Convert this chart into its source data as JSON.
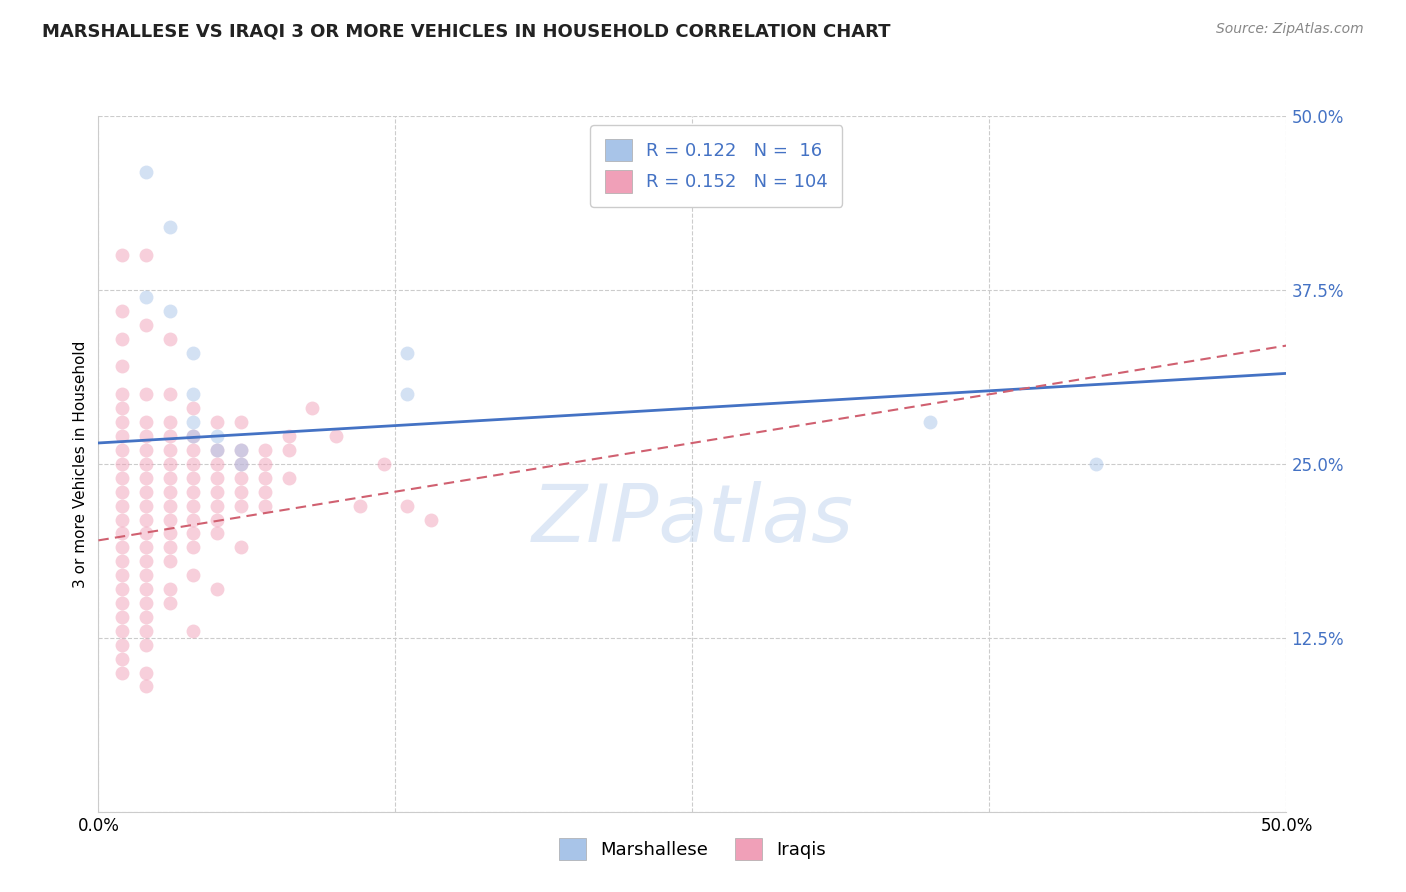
{
  "title": "MARSHALLESE VS IRAQI 3 OR MORE VEHICLES IN HOUSEHOLD CORRELATION CHART",
  "source": "Source: ZipAtlas.com",
  "ylabel": "3 or more Vehicles in Household",
  "watermark": "ZIPatlas",
  "xlim": [
    0.0,
    0.5
  ],
  "ylim": [
    0.0,
    0.5
  ],
  "xticks": [
    0.0,
    0.125,
    0.25,
    0.375,
    0.5
  ],
  "yticks": [
    0.0,
    0.125,
    0.25,
    0.375,
    0.5
  ],
  "grid_color": "#cccccc",
  "background_color": "#ffffff",
  "marshallese_color": "#a8c4e8",
  "iraqi_color": "#f0a0b8",
  "marshallese_line_color": "#4472c4",
  "iraqi_line_color": "#d06070",
  "R_marshallese": 0.122,
  "N_marshallese": 16,
  "R_iraqi": 0.152,
  "N_iraqi": 104,
  "tick_color": "#4472c4",
  "title_fontsize": 13,
  "legend_fontsize": 13,
  "axis_label_fontsize": 11,
  "tick_fontsize": 12,
  "source_fontsize": 10,
  "marker_size": 100,
  "marker_alpha": 0.5,
  "marshallese_scatter": [
    [
      0.02,
      0.46
    ],
    [
      0.03,
      0.42
    ],
    [
      0.02,
      0.37
    ],
    [
      0.03,
      0.36
    ],
    [
      0.04,
      0.33
    ],
    [
      0.13,
      0.33
    ],
    [
      0.04,
      0.3
    ],
    [
      0.13,
      0.3
    ],
    [
      0.04,
      0.28
    ],
    [
      0.35,
      0.28
    ],
    [
      0.04,
      0.27
    ],
    [
      0.05,
      0.27
    ],
    [
      0.05,
      0.26
    ],
    [
      0.06,
      0.26
    ],
    [
      0.06,
      0.25
    ],
    [
      0.42,
      0.25
    ]
  ],
  "iraqi_scatter": [
    [
      0.01,
      0.4
    ],
    [
      0.01,
      0.36
    ],
    [
      0.01,
      0.34
    ],
    [
      0.01,
      0.32
    ],
    [
      0.01,
      0.3
    ],
    [
      0.01,
      0.29
    ],
    [
      0.01,
      0.28
    ],
    [
      0.01,
      0.27
    ],
    [
      0.01,
      0.26
    ],
    [
      0.01,
      0.25
    ],
    [
      0.01,
      0.24
    ],
    [
      0.01,
      0.23
    ],
    [
      0.01,
      0.22
    ],
    [
      0.01,
      0.21
    ],
    [
      0.01,
      0.2
    ],
    [
      0.01,
      0.19
    ],
    [
      0.01,
      0.18
    ],
    [
      0.01,
      0.17
    ],
    [
      0.01,
      0.16
    ],
    [
      0.01,
      0.15
    ],
    [
      0.01,
      0.14
    ],
    [
      0.01,
      0.13
    ],
    [
      0.01,
      0.12
    ],
    [
      0.01,
      0.11
    ],
    [
      0.01,
      0.1
    ],
    [
      0.02,
      0.4
    ],
    [
      0.02,
      0.35
    ],
    [
      0.02,
      0.3
    ],
    [
      0.02,
      0.28
    ],
    [
      0.02,
      0.27
    ],
    [
      0.02,
      0.26
    ],
    [
      0.02,
      0.25
    ],
    [
      0.02,
      0.24
    ],
    [
      0.02,
      0.23
    ],
    [
      0.02,
      0.22
    ],
    [
      0.02,
      0.21
    ],
    [
      0.02,
      0.2
    ],
    [
      0.02,
      0.19
    ],
    [
      0.02,
      0.18
    ],
    [
      0.02,
      0.17
    ],
    [
      0.02,
      0.16
    ],
    [
      0.02,
      0.15
    ],
    [
      0.02,
      0.14
    ],
    [
      0.02,
      0.13
    ],
    [
      0.02,
      0.12
    ],
    [
      0.02,
      0.1
    ],
    [
      0.02,
      0.09
    ],
    [
      0.03,
      0.34
    ],
    [
      0.03,
      0.3
    ],
    [
      0.03,
      0.28
    ],
    [
      0.03,
      0.27
    ],
    [
      0.03,
      0.26
    ],
    [
      0.03,
      0.25
    ],
    [
      0.03,
      0.24
    ],
    [
      0.03,
      0.23
    ],
    [
      0.03,
      0.22
    ],
    [
      0.03,
      0.21
    ],
    [
      0.03,
      0.2
    ],
    [
      0.03,
      0.19
    ],
    [
      0.03,
      0.18
    ],
    [
      0.03,
      0.16
    ],
    [
      0.03,
      0.15
    ],
    [
      0.04,
      0.29
    ],
    [
      0.04,
      0.27
    ],
    [
      0.04,
      0.26
    ],
    [
      0.04,
      0.25
    ],
    [
      0.04,
      0.24
    ],
    [
      0.04,
      0.23
    ],
    [
      0.04,
      0.22
    ],
    [
      0.04,
      0.21
    ],
    [
      0.04,
      0.2
    ],
    [
      0.04,
      0.19
    ],
    [
      0.04,
      0.17
    ],
    [
      0.04,
      0.13
    ],
    [
      0.05,
      0.28
    ],
    [
      0.05,
      0.26
    ],
    [
      0.05,
      0.25
    ],
    [
      0.05,
      0.24
    ],
    [
      0.05,
      0.23
    ],
    [
      0.05,
      0.22
    ],
    [
      0.05,
      0.21
    ],
    [
      0.05,
      0.2
    ],
    [
      0.05,
      0.16
    ],
    [
      0.06,
      0.28
    ],
    [
      0.06,
      0.26
    ],
    [
      0.06,
      0.25
    ],
    [
      0.06,
      0.24
    ],
    [
      0.06,
      0.23
    ],
    [
      0.06,
      0.22
    ],
    [
      0.06,
      0.19
    ],
    [
      0.07,
      0.26
    ],
    [
      0.07,
      0.25
    ],
    [
      0.07,
      0.24
    ],
    [
      0.07,
      0.23
    ],
    [
      0.07,
      0.22
    ],
    [
      0.08,
      0.27
    ],
    [
      0.08,
      0.26
    ],
    [
      0.08,
      0.24
    ],
    [
      0.09,
      0.29
    ],
    [
      0.1,
      0.27
    ],
    [
      0.11,
      0.22
    ],
    [
      0.12,
      0.25
    ],
    [
      0.13,
      0.22
    ],
    [
      0.14,
      0.21
    ]
  ],
  "marshallese_line": [
    0.0,
    0.5,
    0.265,
    0.315
  ],
  "iraqi_line": [
    0.0,
    0.5,
    0.195,
    0.335
  ]
}
